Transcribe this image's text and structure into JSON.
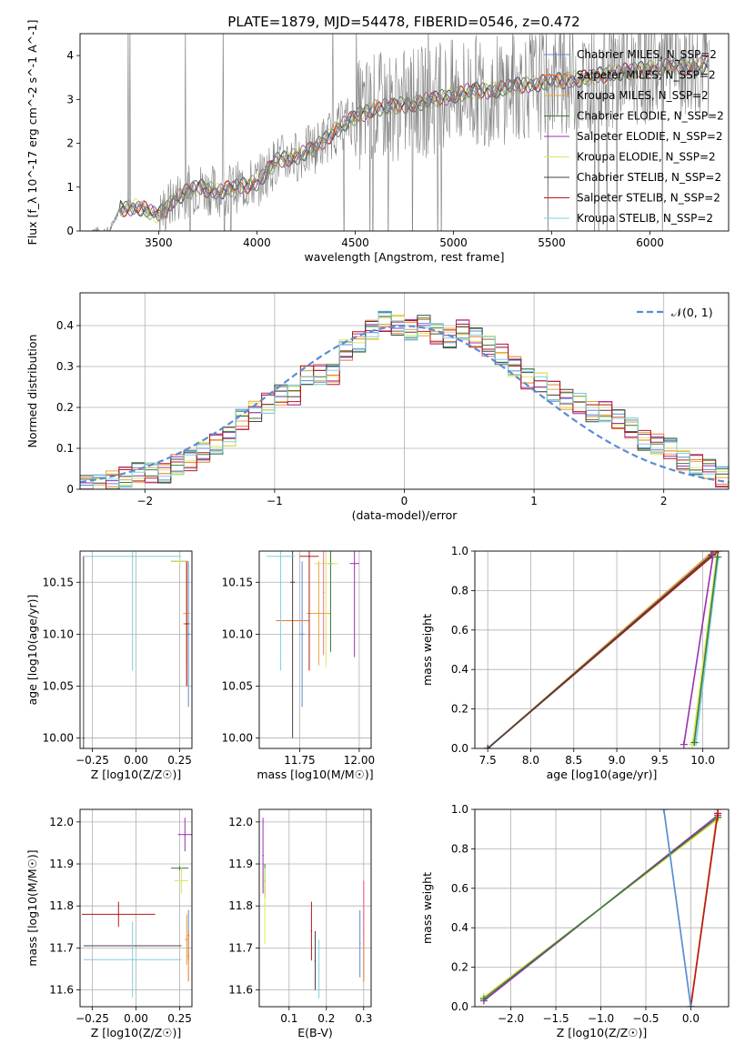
{
  "figure_title": "PLATE=1879, MJD=54478, FIBERID=0546, z=0.472",
  "series_colors": [
    "#5b8bd6",
    "#ee7733",
    "#e8a33a",
    "#3a7d3a",
    "#9b30b0",
    "#dfe65a",
    "#444444",
    "#b51a1a",
    "#7fd0e0"
  ],
  "legend_entries": [
    {
      "name": "Chabrier MILES, N_SSP=2",
      "color": "#5b8bd6"
    },
    {
      "name": "Salpeter MILES, N_SSP=2",
      "color": "#ee7733"
    },
    {
      "name": "Kroupa MILES, N_SSP=2",
      "color": "#e8a33a"
    },
    {
      "name": "Chabrier ELODIE, N_SSP=2",
      "color": "#3a7d3a"
    },
    {
      "name": "Salpeter ELODIE, N_SSP=2",
      "color": "#9b30b0"
    },
    {
      "name": "Kroupa ELODIE, N_SSP=2",
      "color": "#dfe65a"
    },
    {
      "name": "Chabrier STELIB, N_SSP=2",
      "color": "#444444"
    },
    {
      "name": "Salpeter STELIB, N_SSP=2",
      "color": "#b51a1a"
    },
    {
      "name": "Kroupa STELIB, N_SSP=2",
      "color": "#7fd0e0"
    }
  ],
  "chart_data": [
    {
      "id": "spectrum",
      "type": "line",
      "xlabel": "wavelength [Angstrom, rest frame]",
      "ylabel": "Flux [f_λ 10^-17 erg cm^-2 s^-1 A^-1]",
      "xlim": [
        3100,
        6400
      ],
      "ylim": [
        0,
        4.5
      ],
      "xticks": [
        3500,
        4000,
        4500,
        5000,
        5500,
        6000
      ],
      "yticks": [
        0,
        1,
        2,
        3,
        4
      ],
      "grid": false,
      "legend": "top-right",
      "model_flux": {
        "x": [
          3150,
          3250,
          3300,
          3400,
          3500,
          3600,
          3700,
          3800,
          3900,
          4000,
          4100,
          4200,
          4300,
          4400,
          4500,
          4600,
          4700,
          4800,
          4900,
          5000,
          5100,
          5200,
          5300,
          5400,
          5500,
          5600,
          5700,
          5800,
          5900,
          6000,
          6100,
          6200,
          6300
        ],
        "y": [
          0,
          0,
          0.5,
          0.55,
          0.35,
          0.8,
          1.0,
          0.9,
          1.0,
          1.1,
          1.6,
          1.7,
          1.9,
          2.3,
          2.6,
          2.8,
          2.85,
          2.9,
          3.0,
          3.1,
          3.2,
          3.2,
          3.3,
          3.35,
          3.4,
          3.45,
          3.5,
          3.6,
          3.65,
          3.7,
          3.75,
          3.75,
          3.8
        ]
      }
    },
    {
      "id": "residuals",
      "type": "step",
      "xlabel": "(data-model)/error",
      "ylabel": "Normed distribution",
      "xlim": [
        -2.5,
        2.5
      ],
      "ylim": [
        0,
        0.48
      ],
      "xticks": [
        -2,
        -1,
        0,
        1,
        2
      ],
      "yticks": [
        0.0,
        0.1,
        0.2,
        0.3,
        0.4
      ],
      "grid": true,
      "legend": "top-right",
      "reference_curve": {
        "name": "N(0,1)",
        "label": "𝒩(0, 1)",
        "color": "#5b8bd6",
        "mean": 0,
        "sigma": 1
      },
      "histogram": {
        "bin_width": 0.1,
        "x": [
          -2.45,
          -2.35,
          -2.25,
          -2.15,
          -2.05,
          -1.95,
          -1.85,
          -1.75,
          -1.65,
          -1.55,
          -1.45,
          -1.35,
          -1.25,
          -1.15,
          -1.05,
          -0.95,
          -0.85,
          -0.75,
          -0.65,
          -0.55,
          -0.45,
          -0.35,
          -0.25,
          -0.15,
          -0.05,
          0.05,
          0.15,
          0.25,
          0.35,
          0.45,
          0.55,
          0.65,
          0.75,
          0.85,
          0.95,
          1.05,
          1.15,
          1.25,
          1.35,
          1.45,
          1.55,
          1.65,
          1.75,
          1.85,
          1.95,
          2.05,
          2.15,
          2.25,
          2.35,
          2.45
        ],
        "y": [
          0.01,
          0.01,
          0.02,
          0.03,
          0.04,
          0.04,
          0.04,
          0.06,
          0.07,
          0.09,
          0.11,
          0.13,
          0.17,
          0.19,
          0.21,
          0.23,
          0.23,
          0.28,
          0.28,
          0.28,
          0.34,
          0.36,
          0.39,
          0.41,
          0.4,
          0.39,
          0.4,
          0.38,
          0.37,
          0.39,
          0.37,
          0.35,
          0.33,
          0.3,
          0.27,
          0.26,
          0.24,
          0.22,
          0.21,
          0.19,
          0.19,
          0.17,
          0.15,
          0.12,
          0.11,
          0.1,
          0.07,
          0.06,
          0.05,
          0.03
        ]
      }
    },
    {
      "id": "age_vs_Z",
      "type": "errorbar",
      "xlabel": "Z [log10(Z/Z☉)]",
      "ylabel": "age [log10(age/yr)]",
      "xlim": [
        -0.32,
        0.32
      ],
      "ylim": [
        9.99,
        10.18
      ],
      "xticks": [
        -0.25,
        0.0,
        0.25
      ],
      "xtick_labels": [
        "−0.25",
        "0.00",
        "0.25"
      ],
      "yticks": [
        10.0,
        10.05,
        10.1,
        10.15
      ],
      "ytick_labels": [
        "10.00",
        "10.05",
        "10.10",
        "10.15"
      ],
      "grid": true,
      "points": [
        {
          "x": 0.3,
          "y": 10.1,
          "xerr": 0.01,
          "yerr": 0.07,
          "color": "#5b8bd6"
        },
        {
          "x": 0.29,
          "y": 10.11,
          "xerr": 0.02,
          "yerr": 0.06,
          "color": "#ee7733"
        },
        {
          "x": 0.29,
          "y": 10.12,
          "xerr": 0.02,
          "yerr": 0.05,
          "color": "#e8a33a"
        },
        {
          "x": 0.25,
          "y": 10.17,
          "xerr": 0.05,
          "yerr": 0.005,
          "color": "#3a7d3a"
        },
        {
          "x": 0.25,
          "y": 10.17,
          "xerr": 0.05,
          "yerr": 0.005,
          "color": "#9b30b0"
        },
        {
          "x": 0.25,
          "y": 10.17,
          "xerr": 0.05,
          "yerr": 0.005,
          "color": "#dfe65a"
        },
        {
          "x": -0.3,
          "y": 10.0,
          "xerr": 0.005,
          "yerr": 0.175,
          "color": "#444444"
        },
        {
          "x": 0.29,
          "y": 10.11,
          "xerr": 0.01,
          "yerr": 0.06,
          "color": "#b51a1a"
        },
        {
          "x": -0.02,
          "y": 10.175,
          "xerr": 0.28,
          "yerr": 0.11,
          "color": "#7fd0e0"
        }
      ]
    },
    {
      "id": "age_vs_mass",
      "type": "errorbar",
      "xlabel": "mass [log10(M/M☉)]",
      "ylabel": "",
      "xlim": [
        11.58,
        12.05
      ],
      "ylim": [
        9.99,
        10.18
      ],
      "xticks": [
        11.75,
        12.0
      ],
      "xtick_labels": [
        "11.75",
        "12.00"
      ],
      "yticks": [
        10.0,
        10.05,
        10.1,
        10.15
      ],
      "ytick_labels": [
        "10.00",
        "10.05",
        "10.10",
        "10.15"
      ],
      "grid": true,
      "points": [
        {
          "x": 11.76,
          "y": 10.1,
          "xerr": 0.01,
          "yerr": 0.07,
          "color": "#5b8bd6"
        },
        {
          "x": 11.72,
          "y": 10.113,
          "xerr": 0.07,
          "yerr": 0.0,
          "color": "#ee7733"
        },
        {
          "x": 11.83,
          "y": 10.12,
          "xerr": 0.05,
          "yerr": 0.05,
          "color": "#e8a33a"
        },
        {
          "x": 11.88,
          "y": 10.168,
          "xerr": 0.01,
          "yerr": 0.085,
          "color": "#3a7d3a"
        },
        {
          "x": 11.98,
          "y": 10.168,
          "xerr": 0.02,
          "yerr": 0.09,
          "color": "#9b30b0"
        },
        {
          "x": 11.86,
          "y": 10.168,
          "xerr": 0.05,
          "yerr": 0.1,
          "color": "#dfe65a"
        },
        {
          "x": 11.72,
          "y": 10.15,
          "xerr": 0.01,
          "yerr": 0.15,
          "color": "#444444"
        },
        {
          "x": 11.79,
          "y": 10.175,
          "xerr": 0.04,
          "yerr": 0.11,
          "color": "#b51a1a"
        },
        {
          "x": 11.67,
          "y": 10.175,
          "xerr": 0.06,
          "yerr": 0.11,
          "color": "#7fd0e0"
        },
        {
          "x": 11.85,
          "y": 10.14,
          "xerr": 0.0,
          "yerr": 0.06,
          "color": "#f06fa0"
        }
      ]
    },
    {
      "id": "weight_vs_age",
      "type": "line",
      "xlabel": "age [log10(age/yr)]",
      "ylabel": "mass weight",
      "xlim": [
        7.35,
        10.3
      ],
      "ylim": [
        0,
        1
      ],
      "xticks": [
        7.5,
        8.0,
        8.5,
        9.0,
        9.5,
        10.0
      ],
      "xtick_labels": [
        "7.5",
        "8.0",
        "8.5",
        "9.0",
        "9.5",
        "10.0"
      ],
      "yticks": [
        0,
        0.2,
        0.4,
        0.6,
        0.8,
        1.0
      ],
      "ytick_labels": [
        "0.0",
        "0.2",
        "0.4",
        "0.6",
        "0.8",
        "1.0"
      ],
      "grid": true,
      "lines": [
        {
          "x": [
            7.5,
            10.15
          ],
          "y": [
            0,
            1
          ],
          "color": "#ee7733"
        },
        {
          "x": [
            7.5,
            10.12
          ],
          "y": [
            0,
            1
          ],
          "color": "#e8a33a"
        },
        {
          "x": [
            7.5,
            10.18
          ],
          "y": [
            0,
            1
          ],
          "color": "#b51a1a"
        },
        {
          "x": [
            7.5,
            10.1
          ],
          "y": [
            0,
            0.98
          ],
          "color": "#444444"
        },
        {
          "x": [
            9.78,
            10.12
          ],
          "y": [
            0.02,
            0.98
          ],
          "color": "#9b30b0"
        },
        {
          "x": [
            9.88,
            10.16
          ],
          "y": [
            0.02,
            0.97
          ],
          "color": "#dfe65a"
        },
        {
          "x": [
            9.92,
            10.18
          ],
          "y": [
            0.03,
            0.97
          ],
          "color": "#7fd0e0"
        },
        {
          "x": [
            9.9,
            10.17
          ],
          "y": [
            0.03,
            0.97
          ],
          "color": "#3a7d3a"
        }
      ]
    },
    {
      "id": "mass_vs_Z",
      "type": "errorbar",
      "xlabel": "Z [log10(Z/Z☉)]",
      "ylabel": "mass [log10(M/M☉)]",
      "xlim": [
        -0.32,
        0.32
      ],
      "ylim": [
        11.56,
        12.03
      ],
      "xticks": [
        -0.25,
        0.0,
        0.25
      ],
      "xtick_labels": [
        "−0.25",
        "0.00",
        "0.25"
      ],
      "yticks": [
        11.6,
        11.7,
        11.8,
        11.9,
        12.0
      ],
      "ytick_labels": [
        "11.6",
        "11.7",
        "11.8",
        "11.9",
        "12.0"
      ],
      "grid": true,
      "points": [
        {
          "x": 0.3,
          "y": 11.73,
          "xerr": 0.005,
          "yerr": 0.06,
          "color": "#5b8bd6"
        },
        {
          "x": 0.3,
          "y": 11.68,
          "xerr": 0.005,
          "yerr": 0.06,
          "color": "#ee7733"
        },
        {
          "x": 0.29,
          "y": 11.72,
          "xerr": 0.01,
          "yerr": 0.06,
          "color": "#e8a33a"
        },
        {
          "x": 0.25,
          "y": 11.89,
          "xerr": 0.05,
          "yerr": 0.005,
          "color": "#3a7d3a"
        },
        {
          "x": 0.28,
          "y": 11.97,
          "xerr": 0.04,
          "yerr": 0.04,
          "color": "#9b30b0"
        },
        {
          "x": 0.26,
          "y": 11.86,
          "xerr": 0.04,
          "yerr": 0.03,
          "color": "#dfe65a"
        },
        {
          "x": -0.02,
          "y": 11.705,
          "xerr": 0.28,
          "yerr": 0.0,
          "color": "#444444"
        },
        {
          "x": -0.1,
          "y": 11.78,
          "xerr": 0.21,
          "yerr": 0.03,
          "color": "#b51a1a"
        },
        {
          "x": -0.02,
          "y": 11.672,
          "xerr": 0.28,
          "yerr": 0.09,
          "color": "#7fd0e0"
        }
      ]
    },
    {
      "id": "mass_vs_EBV",
      "type": "errorbar",
      "xlabel": "E(B-V)",
      "ylabel": "",
      "xlim": [
        0.02,
        0.32
      ],
      "ylim": [
        11.56,
        12.03
      ],
      "xticks": [
        0.1,
        0.2,
        0.3
      ],
      "xtick_labels": [
        "0.1",
        "0.2",
        "0.3"
      ],
      "yticks": [
        11.6,
        11.7,
        11.8,
        11.9,
        12.0
      ],
      "ytick_labels": [
        "11.6",
        "11.7",
        "11.8",
        "11.9",
        "12.0"
      ],
      "grid": true,
      "points": [
        {
          "x": 0.29,
          "y": 11.71,
          "xerr": 0,
          "yerr": 0.08,
          "color": "#5b8bd6"
        },
        {
          "x": 0.3,
          "y": 11.74,
          "xerr": 0,
          "yerr": 0.12,
          "color": "#ee7733"
        },
        {
          "x": 0.3,
          "y": 11.78,
          "xerr": 0,
          "yerr": 0.08,
          "color": "#f06fa0"
        },
        {
          "x": 0.035,
          "y": 11.86,
          "xerr": 0,
          "yerr": 0.04,
          "color": "#3a7d3a"
        },
        {
          "x": 0.03,
          "y": 11.92,
          "xerr": 0,
          "yerr": 0.09,
          "color": "#9b30b0"
        },
        {
          "x": 0.035,
          "y": 11.8,
          "xerr": 0,
          "yerr": 0.09,
          "color": "#dfe65a"
        },
        {
          "x": 0.17,
          "y": 11.67,
          "xerr": 0,
          "yerr": 0.07,
          "color": "#444444"
        },
        {
          "x": 0.16,
          "y": 11.74,
          "xerr": 0,
          "yerr": 0.07,
          "color": "#b51a1a"
        },
        {
          "x": 0.18,
          "y": 11.65,
          "xerr": 0,
          "yerr": 0.07,
          "color": "#7fd0e0"
        }
      ]
    },
    {
      "id": "weight_vs_Z",
      "type": "line",
      "xlabel": "Z [log10(Z/Z☉)]",
      "ylabel": "mass weight",
      "xlim": [
        -2.4,
        0.42
      ],
      "ylim": [
        0,
        1
      ],
      "xticks": [
        -2.0,
        -1.5,
        -1.0,
        -0.5,
        0.0
      ],
      "xtick_labels": [
        "−2.0",
        "−1.5",
        "−1.0",
        "−0.5",
        "0.0"
      ],
      "yticks": [
        0,
        0.2,
        0.4,
        0.6,
        0.8,
        1.0
      ],
      "ytick_labels": [
        "0.0",
        "0.2",
        "0.4",
        "0.6",
        "0.8",
        "1.0"
      ],
      "grid": true,
      "lines": [
        {
          "x": [
            -2.3,
            0.3
          ],
          "y": [
            0.03,
            0.97
          ],
          "color": "#9b30b0"
        },
        {
          "x": [
            -2.3,
            0.3
          ],
          "y": [
            0.05,
            0.95
          ],
          "color": "#dfe65a"
        },
        {
          "x": [
            -2.3,
            0.3
          ],
          "y": [
            0.04,
            0.96
          ],
          "color": "#3a7d3a"
        },
        {
          "x": [
            0.0,
            0.3
          ],
          "y": [
            0.0,
            1.0
          ],
          "color": "#ee7733"
        },
        {
          "x": [
            0.0,
            0.3
          ],
          "y": [
            0.0,
            1.0
          ],
          "color": "#e8a33a"
        },
        {
          "x": [
            0.0,
            0.3
          ],
          "y": [
            0.0,
            0.98
          ],
          "color": "#b51a1a"
        },
        {
          "x": [
            -0.3,
            0.0
          ],
          "y": [
            1.0,
            0.0
          ],
          "color": "#7fd0e0"
        },
        {
          "x": [
            -0.3,
            0.0
          ],
          "y": [
            1.0,
            0.0
          ],
          "color": "#5b8bd6"
        }
      ]
    }
  ]
}
